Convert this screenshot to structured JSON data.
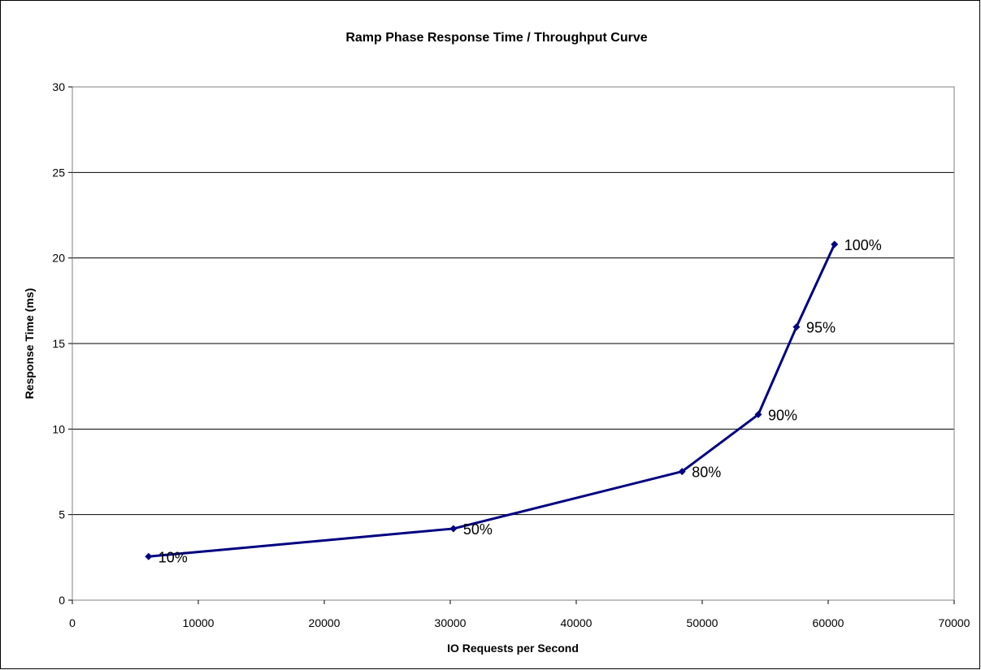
{
  "chart_data": {
    "type": "line",
    "title": "Ramp Phase Response Time / Throughput Curve",
    "xlabel": "IO Requests per Second",
    "ylabel": "Response Time (ms)",
    "xlim": [
      0,
      70000
    ],
    "ylim": [
      0,
      30
    ],
    "x_ticks": [
      "0",
      "10000",
      "20000",
      "30000",
      "40000",
      "50000",
      "60000",
      "70000"
    ],
    "y_ticks": [
      "0",
      "5",
      "10",
      "15",
      "20",
      "25",
      "30"
    ],
    "grid": "horizontal",
    "line_color": "#000080",
    "series": [
      {
        "points": [
          {
            "x": 6050,
            "y": 2.55,
            "label": "10%"
          },
          {
            "x": 30250,
            "y": 4.18,
            "label": "50%"
          },
          {
            "x": 48400,
            "y": 7.52,
            "label": "80%"
          },
          {
            "x": 54450,
            "y": 10.85,
            "label": "90%"
          },
          {
            "x": 57480,
            "y": 15.97,
            "label": "95%"
          },
          {
            "x": 60500,
            "y": 20.8,
            "label": "100%"
          }
        ]
      }
    ]
  }
}
